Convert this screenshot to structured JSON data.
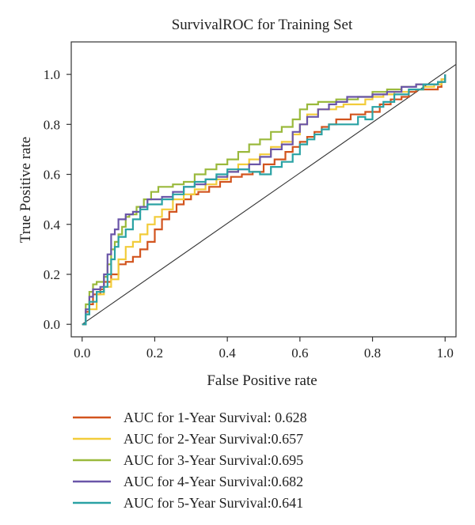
{
  "chart_data": {
    "type": "line",
    "title": "SurvivalROC for Training Set",
    "xlabel": "False Positive rate",
    "ylabel": "True Positive rate",
    "xlim": [
      -0.03,
      1.03
    ],
    "ylim": [
      -0.05,
      1.13
    ],
    "xticks": [
      "0.0",
      "0.2",
      "0.4",
      "0.6",
      "0.8",
      "1.0"
    ],
    "yticks": [
      "0.0",
      "0.2",
      "0.4",
      "0.6",
      "0.8",
      "1.0"
    ],
    "grid": false,
    "legend_position": "bottom",
    "reference_line": {
      "x": [
        0,
        1.03
      ],
      "y": [
        0,
        1.04
      ],
      "color": "#333333"
    },
    "series": [
      {
        "name": "AUC for 1-Year Survival: 0.628",
        "color": "#d2541e",
        "x": [
          0.0,
          0.01,
          0.02,
          0.03,
          0.05,
          0.06,
          0.08,
          0.1,
          0.12,
          0.14,
          0.16,
          0.18,
          0.2,
          0.22,
          0.24,
          0.26,
          0.28,
          0.3,
          0.32,
          0.35,
          0.38,
          0.41,
          0.44,
          0.47,
          0.5,
          0.53,
          0.56,
          0.58,
          0.6,
          0.62,
          0.64,
          0.66,
          0.68,
          0.7,
          0.72,
          0.74,
          0.76,
          0.78,
          0.8,
          0.82,
          0.85,
          0.88,
          0.9,
          0.92,
          0.95,
          0.98,
          0.99,
          1.0
        ],
        "y": [
          0.0,
          0.05,
          0.08,
          0.12,
          0.14,
          0.17,
          0.2,
          0.24,
          0.25,
          0.27,
          0.3,
          0.33,
          0.38,
          0.42,
          0.45,
          0.48,
          0.5,
          0.52,
          0.53,
          0.55,
          0.57,
          0.59,
          0.6,
          0.61,
          0.64,
          0.66,
          0.69,
          0.71,
          0.73,
          0.75,
          0.77,
          0.79,
          0.8,
          0.82,
          0.82,
          0.84,
          0.84,
          0.85,
          0.85,
          0.88,
          0.9,
          0.91,
          0.93,
          0.94,
          0.94,
          0.95,
          0.98,
          1.0
        ]
      },
      {
        "name": "AUC for 2-Year Survival:0.657",
        "color": "#f2cc3a",
        "x": [
          0.0,
          0.01,
          0.02,
          0.04,
          0.06,
          0.08,
          0.1,
          0.12,
          0.14,
          0.16,
          0.18,
          0.2,
          0.22,
          0.25,
          0.28,
          0.31,
          0.34,
          0.37,
          0.4,
          0.43,
          0.46,
          0.49,
          0.52,
          0.55,
          0.58,
          0.6,
          0.62,
          0.65,
          0.68,
          0.7,
          0.72,
          0.75,
          0.78,
          0.8,
          0.83,
          0.86,
          0.9,
          0.94,
          0.97,
          0.99,
          1.0
        ],
        "y": [
          0.0,
          0.04,
          0.06,
          0.12,
          0.15,
          0.18,
          0.26,
          0.31,
          0.33,
          0.36,
          0.4,
          0.43,
          0.46,
          0.5,
          0.52,
          0.54,
          0.56,
          0.58,
          0.61,
          0.64,
          0.66,
          0.68,
          0.71,
          0.73,
          0.76,
          0.8,
          0.84,
          0.86,
          0.86,
          0.87,
          0.88,
          0.88,
          0.9,
          0.91,
          0.92,
          0.93,
          0.94,
          0.95,
          0.96,
          0.98,
          1.0
        ]
      },
      {
        "name": "AUC for 3-Year Survival:0.695",
        "color": "#9ab93c",
        "x": [
          0.0,
          0.01,
          0.02,
          0.03,
          0.04,
          0.06,
          0.07,
          0.08,
          0.09,
          0.1,
          0.11,
          0.12,
          0.13,
          0.15,
          0.17,
          0.19,
          0.21,
          0.23,
          0.25,
          0.28,
          0.31,
          0.34,
          0.37,
          0.4,
          0.43,
          0.46,
          0.49,
          0.52,
          0.55,
          0.58,
          0.6,
          0.62,
          0.65,
          0.68,
          0.7,
          0.73,
          0.76,
          0.8,
          0.84,
          0.88,
          0.92,
          0.95,
          0.98,
          1.0
        ],
        "y": [
          0.0,
          0.08,
          0.13,
          0.16,
          0.17,
          0.19,
          0.24,
          0.3,
          0.33,
          0.36,
          0.39,
          0.43,
          0.44,
          0.47,
          0.5,
          0.53,
          0.55,
          0.55,
          0.56,
          0.57,
          0.6,
          0.62,
          0.64,
          0.66,
          0.69,
          0.72,
          0.74,
          0.77,
          0.79,
          0.82,
          0.86,
          0.88,
          0.89,
          0.89,
          0.9,
          0.9,
          0.91,
          0.93,
          0.94,
          0.95,
          0.96,
          0.96,
          0.97,
          1.0
        ]
      },
      {
        "name": "AUC for 4-Year Survival:0.682",
        "color": "#6a55a8",
        "x": [
          0.0,
          0.01,
          0.02,
          0.03,
          0.05,
          0.06,
          0.07,
          0.08,
          0.09,
          0.1,
          0.12,
          0.14,
          0.16,
          0.18,
          0.2,
          0.22,
          0.25,
          0.28,
          0.31,
          0.34,
          0.37,
          0.4,
          0.43,
          0.46,
          0.49,
          0.52,
          0.55,
          0.58,
          0.6,
          0.62,
          0.65,
          0.68,
          0.7,
          0.73,
          0.76,
          0.8,
          0.84,
          0.88,
          0.92,
          0.95,
          0.98,
          1.0
        ],
        "y": [
          0.0,
          0.06,
          0.11,
          0.14,
          0.15,
          0.2,
          0.28,
          0.36,
          0.38,
          0.42,
          0.44,
          0.45,
          0.47,
          0.5,
          0.5,
          0.51,
          0.53,
          0.55,
          0.56,
          0.58,
          0.59,
          0.61,
          0.62,
          0.64,
          0.67,
          0.7,
          0.72,
          0.77,
          0.8,
          0.83,
          0.86,
          0.88,
          0.89,
          0.91,
          0.91,
          0.92,
          0.93,
          0.95,
          0.96,
          0.96,
          0.97,
          1.0
        ]
      },
      {
        "name": "AUC for 5-Year Survival:0.641",
        "color": "#2aa2a4",
        "x": [
          0.0,
          0.01,
          0.02,
          0.04,
          0.06,
          0.07,
          0.08,
          0.09,
          0.1,
          0.12,
          0.14,
          0.16,
          0.18,
          0.2,
          0.22,
          0.25,
          0.28,
          0.31,
          0.34,
          0.37,
          0.4,
          0.43,
          0.46,
          0.49,
          0.52,
          0.55,
          0.58,
          0.6,
          0.62,
          0.64,
          0.66,
          0.68,
          0.7,
          0.72,
          0.74,
          0.76,
          0.78,
          0.8,
          0.83,
          0.86,
          0.9,
          0.94,
          0.98,
          1.0
        ],
        "y": [
          0.0,
          0.04,
          0.09,
          0.13,
          0.15,
          0.2,
          0.26,
          0.31,
          0.35,
          0.38,
          0.42,
          0.46,
          0.48,
          0.48,
          0.5,
          0.52,
          0.55,
          0.57,
          0.58,
          0.6,
          0.62,
          0.62,
          0.61,
          0.6,
          0.63,
          0.65,
          0.68,
          0.72,
          0.74,
          0.76,
          0.78,
          0.8,
          0.8,
          0.8,
          0.8,
          0.83,
          0.82,
          0.87,
          0.89,
          0.92,
          0.94,
          0.96,
          0.97,
          1.0
        ]
      }
    ]
  }
}
